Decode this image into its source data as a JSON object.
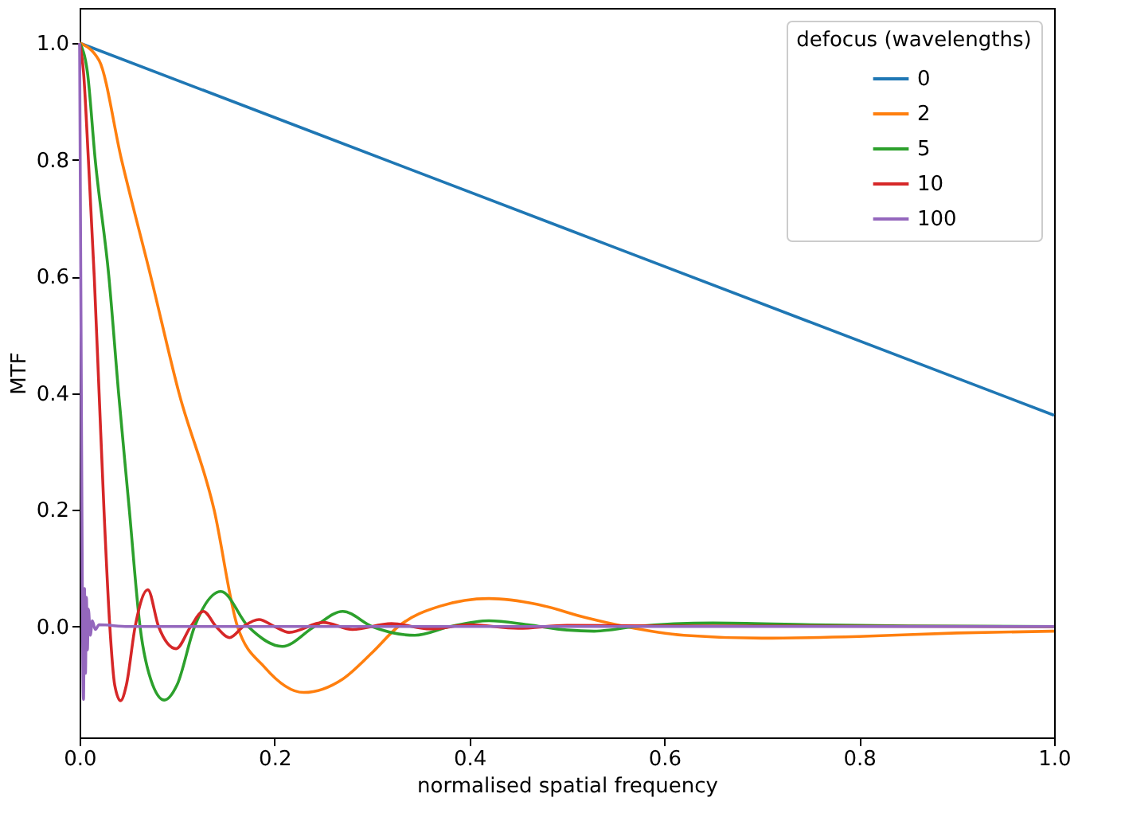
{
  "chart_data": {
    "type": "line",
    "xlabel": "normalised spatial frequency",
    "ylabel": "MTF",
    "legend_title": "defocus (wavelengths)",
    "legend": "top right",
    "grid": false,
    "marker": "none",
    "line_style": "solid",
    "xlim": [
      0,
      1
    ],
    "xticks": [
      {
        "value": 0,
        "label": "0.0"
      },
      0.2,
      0.4,
      0.6,
      0.8,
      {
        "value": 1,
        "label": "1.0"
      }
    ],
    "ylim": [
      -0.19,
      1.06
    ],
    "yticks": [
      {
        "value": 0,
        "label": "0.0"
      },
      0.2,
      0.4,
      0.6,
      0.8,
      {
        "value": 1,
        "label": "1.0"
      }
    ],
    "series": [
      {
        "name": "0",
        "color": "#1f77b4",
        "x": [
          0,
          0.5,
          1
        ],
        "values": [
          1,
          0.681,
          0.362
        ]
      },
      {
        "name": "2",
        "color": "#ff7f0e",
        "x": [
          0,
          0.02,
          0.043,
          0.073,
          0.102,
          0.138,
          0.162,
          0.19,
          0.23,
          0.27,
          0.3,
          0.327,
          0.37,
          0.42,
          0.47,
          0.52,
          0.56,
          0.62,
          0.7,
          0.8,
          0.9,
          1.0
        ],
        "values": [
          1,
          0.97,
          0.8,
          0.6,
          0.4,
          0.2,
          0,
          -0.07,
          -0.113,
          -0.09,
          -0.045,
          0,
          0.035,
          0.048,
          0.038,
          0.015,
          0,
          -0.015,
          -0.02,
          -0.017,
          -0.011,
          -0.008
        ]
      },
      {
        "name": "5",
        "color": "#2ca02c",
        "x": [
          0,
          0.008,
          0.016,
          0.03,
          0.04,
          0.051,
          0.062,
          0.075,
          0.087,
          0.1,
          0.118,
          0.145,
          0.173,
          0.208,
          0.241,
          0.27,
          0.3,
          0.344,
          0.38,
          0.42,
          0.46,
          0.5,
          0.528,
          0.57,
          0.65,
          0.75,
          0.85,
          1.0
        ],
        "values": [
          1,
          0.95,
          0.8,
          0.6,
          0.4,
          0.2,
          0,
          -0.1,
          -0.126,
          -0.1,
          0,
          0.06,
          0,
          -0.034,
          0,
          0.026,
          0,
          -0.015,
          0,
          0.01,
          0.003,
          -0.006,
          -0.008,
          0,
          0.006,
          0.003,
          0.001,
          0
        ]
      },
      {
        "name": "10",
        "color": "#d62728",
        "x": [
          0,
          0.004,
          0.009,
          0.015,
          0.02,
          0.025,
          0.031,
          0.036,
          0.042,
          0.048,
          0.057,
          0.07,
          0.081,
          0.099,
          0.114,
          0.127,
          0.14,
          0.154,
          0.168,
          0.184,
          0.2,
          0.215,
          0.25,
          0.28,
          0.32,
          0.36,
          0.4,
          0.45,
          0.5,
          0.6,
          1.0
        ],
        "values": [
          1,
          0.95,
          0.8,
          0.6,
          0.4,
          0.2,
          0,
          -0.1,
          -0.127,
          -0.1,
          0,
          0.063,
          0,
          -0.038,
          0,
          0.026,
          0,
          -0.019,
          0,
          0.012,
          0,
          -0.01,
          0.007,
          -0.005,
          0.005,
          -0.004,
          0.003,
          -0.003,
          0.002,
          0.001,
          0
        ]
      },
      {
        "name": "100",
        "color": "#9467bd",
        "x": [
          0,
          0.0015,
          0.003,
          0.004,
          0.005,
          0.006,
          0.007,
          0.008,
          0.009,
          0.011,
          0.013,
          0.016,
          0.02,
          0.05,
          1.0
        ],
        "values": [
          1,
          0.5,
          0,
          -0.125,
          0.065,
          -0.08,
          0.05,
          -0.04,
          0.03,
          -0.015,
          0.01,
          -0.005,
          0.003,
          0,
          0
        ]
      }
    ]
  }
}
